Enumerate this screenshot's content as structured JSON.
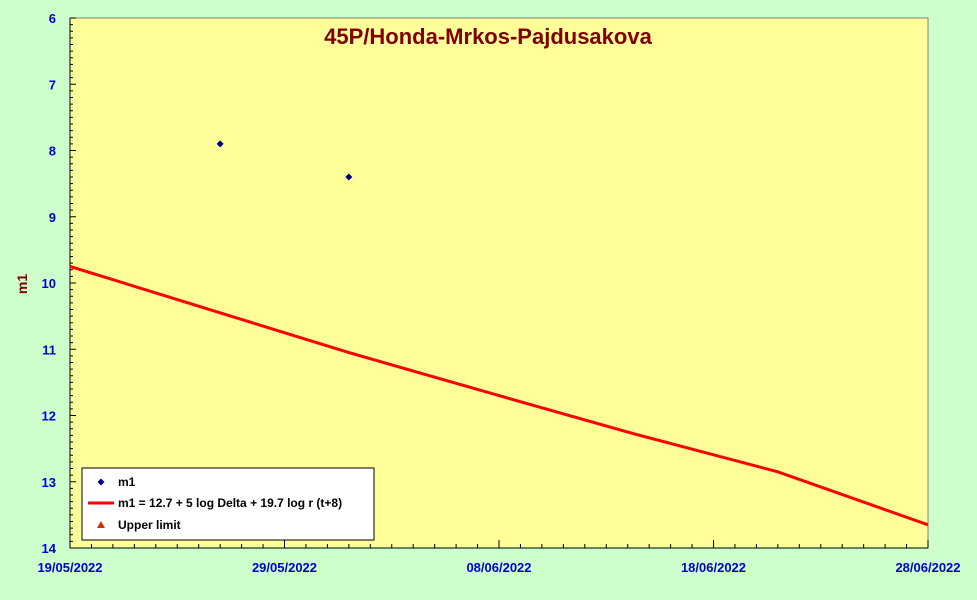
{
  "chart_data": {
    "type": "scatter",
    "title": "45P/Honda-Mrkos-Pajdusakova",
    "xlabel": "",
    "ylabel": "m1",
    "x_range": [
      "2022-05-19",
      "2022-06-28"
    ],
    "x_tick_labels": [
      "19/05/2022",
      "29/05/2022",
      "08/06/2022",
      "18/06/2022",
      "28/06/2022"
    ],
    "y_range": [
      6,
      14
    ],
    "y_inverted": true,
    "y_ticks": [
      6,
      7,
      8,
      9,
      10,
      11,
      12,
      13,
      14
    ],
    "grid": false,
    "legend_position": "bottom-left",
    "series": [
      {
        "name": "m1",
        "kind": "points",
        "marker": "diamond",
        "color": "#000080",
        "points": [
          {
            "x": "2022-05-26",
            "y": 7.9
          },
          {
            "x": "2022-06-01",
            "y": 8.4
          }
        ]
      },
      {
        "name": "m1 = 12.7 + 5 log Delta + 19.7 log r (t+8)",
        "kind": "line",
        "color": "#ff0000",
        "points": [
          {
            "x": "2022-05-19",
            "y": 9.75
          },
          {
            "x": "2022-05-26",
            "y": 10.45
          },
          {
            "x": "2022-06-01",
            "y": 11.05
          },
          {
            "x": "2022-06-08",
            "y": 11.7
          },
          {
            "x": "2022-06-14",
            "y": 12.25
          },
          {
            "x": "2022-06-21",
            "y": 12.85
          },
          {
            "x": "2022-06-28",
            "y": 13.65
          }
        ]
      },
      {
        "name": "Upper limit",
        "kind": "points",
        "marker": "triangle",
        "color": "#cc3300",
        "points": []
      }
    ]
  }
}
